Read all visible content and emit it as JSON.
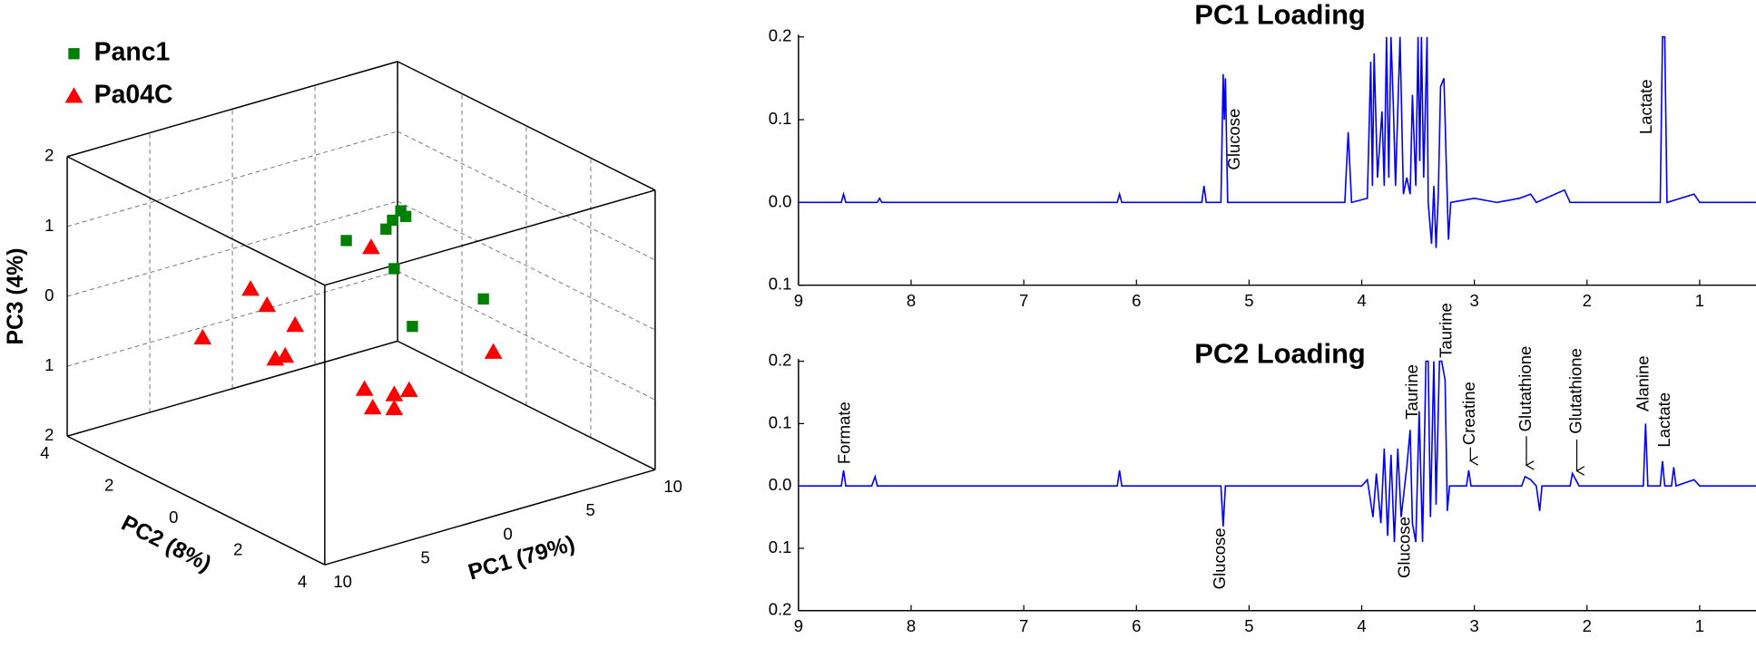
{
  "chart_data": [
    {
      "type": "scatter3d",
      "xlabel": "PC1 (79%)",
      "ylabel": "PC2 (8%)",
      "zlabel": "PC3 (4%)",
      "xlim": [
        -10,
        10
      ],
      "ylim": [
        -4,
        4
      ],
      "zlim": [
        -2,
        2
      ],
      "xticks": [
        {
          "value": -10,
          "label": "10"
        },
        {
          "value": -5,
          "label": "5"
        },
        0,
        5,
        10
      ],
      "yticks": [
        4,
        2,
        0,
        {
          "value": -2,
          "label": "2"
        },
        {
          "value": -4,
          "label": "4"
        }
      ],
      "zticks": [
        2,
        1,
        0,
        {
          "value": -1,
          "label": "1"
        },
        {
          "value": -2,
          "label": "2"
        }
      ],
      "grid": true,
      "legend": "upper left",
      "series": [
        {
          "name": "Panc1",
          "color": "#008000",
          "marker": "square",
          "x": [
            -0.9,
            1.5,
            1.9,
            2.4,
            2.7,
            2.0,
            3.1,
            7.4
          ],
          "y": [
            0,
            0,
            0,
            0,
            0,
            0,
            0,
            0
          ],
          "z": [
            1.1,
            1.1,
            1.2,
            1.3,
            1.2,
            0.5,
            -0.4,
            -0.3
          ]
        },
        {
          "name": "Pa04C",
          "color": "#ff0000",
          "marker": "triangle",
          "x": [
            -9.6,
            -6.7,
            -5.7,
            -4.0,
            -5.2,
            -4.6,
            0.6,
            0.2,
            0.7,
            2.0,
            2.0,
            2.9,
            8.0
          ],
          "y": [
            0,
            0,
            0,
            0,
            0,
            0,
            0,
            0,
            0,
            0,
            0,
            0,
            0
          ],
          "z": [
            0.3,
            0.8,
            0.5,
            0.1,
            -0.3,
            -0.3,
            0.9,
            -1.1,
            -1.4,
            -1.3,
            -1.5,
            -1.3,
            -1.1
          ]
        }
      ]
    },
    {
      "type": "line",
      "title": "PC1 Loading",
      "color": "#0000ff",
      "xlim": [
        9,
        0.5
      ],
      "xticks": [
        9,
        8,
        7,
        6,
        5,
        4,
        3,
        2,
        1
      ],
      "ylim": [
        -0.1,
        0.2
      ],
      "yticks": [
        0.2,
        0.1,
        {
          "value": 0,
          "label": "0.0"
        },
        {
          "value": -0.1,
          "label": "0.1"
        }
      ],
      "x": [
        9.0,
        8.62,
        8.6,
        8.58,
        8.3,
        8.28,
        8.26,
        6.17,
        6.15,
        6.13,
        5.42,
        5.4,
        5.38,
        5.25,
        5.23,
        5.22,
        5.21,
        5.19,
        4.15,
        4.12,
        4.09,
        3.95,
        3.92,
        3.905,
        3.89,
        3.86,
        3.82,
        3.8,
        3.78,
        3.76,
        3.74,
        3.72,
        3.7,
        3.66,
        3.63,
        3.6,
        3.57,
        3.55,
        3.52,
        3.5,
        3.485,
        3.47,
        3.45,
        3.42,
        3.41,
        3.38,
        3.36,
        3.34,
        3.32,
        3.3,
        3.27,
        3.25,
        3.23,
        3.21,
        3.0,
        2.8,
        2.6,
        2.5,
        2.45,
        2.2,
        2.15,
        1.35,
        1.33,
        1.31,
        1.29,
        1.05,
        1.0,
        0.5
      ],
      "values": [
        0,
        0,
        0.01,
        0,
        0,
        0.005,
        0,
        0,
        0.01,
        0,
        0,
        0.02,
        0,
        0,
        0.155,
        0.1,
        0.15,
        0,
        0,
        0.085,
        0,
        0.005,
        0.17,
        0.02,
        0.18,
        0.03,
        0.11,
        0.02,
        0.2,
        0.03,
        0.2,
        0.12,
        0.02,
        0.2,
        0.01,
        0.03,
        0.01,
        0.13,
        0.02,
        0.2,
        0.05,
        0.2,
        0.03,
        0.2,
        0,
        -0.05,
        0.02,
        -0.055,
        0.01,
        0.14,
        0.15,
        0.05,
        -0.045,
        0,
        0.005,
        0,
        0.005,
        0.01,
        0,
        0.015,
        0,
        0,
        0.2,
        0.2,
        0,
        0.01,
        0,
        0
      ],
      "annotations": [
        "Glucose",
        "Lactate"
      ]
    },
    {
      "type": "line",
      "title": "PC2 Loading",
      "color": "#0000ff",
      "xlim": [
        9,
        0.5
      ],
      "xticks": [
        9,
        8,
        7,
        6,
        5,
        4,
        3,
        2,
        1
      ],
      "ylim": [
        -0.2,
        0.2
      ],
      "yticks": [
        0.2,
        0.1,
        {
          "value": 0,
          "label": "0.0"
        },
        {
          "value": -0.1,
          "label": "0.1"
        },
        {
          "value": -0.2,
          "label": "0.2"
        }
      ],
      "x": [
        9.0,
        8.62,
        8.6,
        8.58,
        8.35,
        8.32,
        8.3,
        6.17,
        6.15,
        6.13,
        5.25,
        5.23,
        5.21,
        4.0,
        3.95,
        3.9,
        3.87,
        3.83,
        3.8,
        3.77,
        3.74,
        3.71,
        3.68,
        3.65,
        3.6,
        3.57,
        3.55,
        3.52,
        3.49,
        3.46,
        3.43,
        3.41,
        3.39,
        3.36,
        3.34,
        3.31,
        3.29,
        3.26,
        3.24,
        3.22,
        3.07,
        3.05,
        3.03,
        2.58,
        2.55,
        2.5,
        2.45,
        2.42,
        2.4,
        2.15,
        2.13,
        2.1,
        2.07,
        1.5,
        1.48,
        1.46,
        1.35,
        1.33,
        1.31,
        1.25,
        1.23,
        1.21,
        1.05,
        1.0,
        0.5
      ],
      "values": [
        0,
        0,
        0.025,
        0,
        0,
        0.015,
        0,
        0,
        0.025,
        0,
        0,
        -0.065,
        0,
        0,
        0.01,
        -0.05,
        0.02,
        -0.06,
        0.06,
        -0.08,
        0.05,
        -0.09,
        0.06,
        -0.05,
        0.03,
        0.09,
        -0.06,
        -0.09,
        0.12,
        -0.09,
        0.2,
        0.2,
        -0.05,
        0.2,
        -0.03,
        0.2,
        0.2,
        0.17,
        -0.04,
        0,
        0,
        0.025,
        0,
        0,
        0.015,
        0.01,
        0,
        -0.04,
        0,
        0,
        0.02,
        0.01,
        0,
        0,
        0.1,
        0,
        0,
        0.04,
        0,
        0,
        0.03,
        0,
        0.01,
        0,
        0
      ],
      "annotations": [
        "Formate",
        "Glucose",
        "Glucose",
        "Taurine",
        "Taurine",
        "Creatine",
        "Glutathione",
        "Glutathione",
        "Alanine",
        "Lactate"
      ]
    }
  ]
}
